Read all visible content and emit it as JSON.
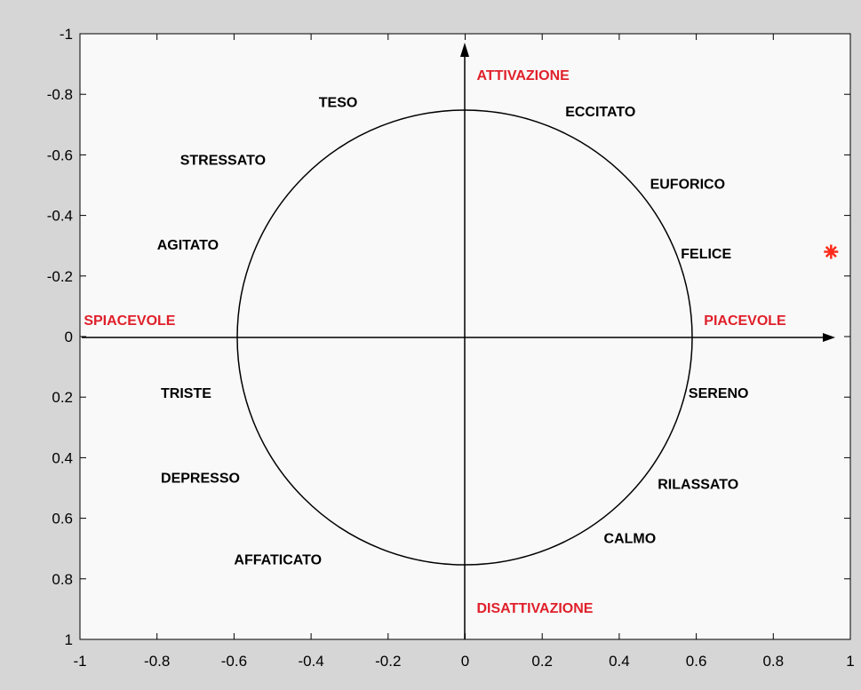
{
  "chart_data": {
    "type": "scatter",
    "x": [
      0.95
    ],
    "values": [
      -0.28
    ],
    "color": "#ff2a1a",
    "marker": "asterisk",
    "xlim": [
      -1,
      1
    ],
    "ylim": [
      -1,
      1
    ],
    "y_reversed": true,
    "xticks": [
      -1,
      -0.8,
      -0.6,
      -0.4,
      -0.2,
      0,
      0.2,
      0.4,
      0.6,
      0.8,
      1
    ],
    "yticks": [
      -1,
      -0.8,
      -0.6,
      -0.4,
      -0.2,
      0,
      0.2,
      0.4,
      0.6,
      0.8,
      1
    ],
    "annotations": [
      {
        "text": "ATTIVAZIONE",
        "x": 0.03,
        "y": -0.86,
        "color": "#e0202a"
      },
      {
        "text": "TESO",
        "x": -0.38,
        "y": -0.77,
        "color": "#000000"
      },
      {
        "text": "ECCITATO",
        "x": 0.26,
        "y": -0.74,
        "color": "#000000"
      },
      {
        "text": "STRESSATO",
        "x": -0.74,
        "y": -0.58,
        "color": "#000000"
      },
      {
        "text": "EUFORICO",
        "x": 0.48,
        "y": -0.5,
        "color": "#000000"
      },
      {
        "text": "AGITATO",
        "x": -0.8,
        "y": -0.3,
        "color": "#000000"
      },
      {
        "text": "FELICE",
        "x": 0.56,
        "y": -0.27,
        "color": "#000000"
      },
      {
        "text": "SPIACEVOLE",
        "x": -0.99,
        "y": -0.05,
        "color": "#e0202a"
      },
      {
        "text": "PIACEVOLE",
        "x": 0.62,
        "y": -0.05,
        "color": "#e0202a"
      },
      {
        "text": "TRISTE",
        "x": -0.79,
        "y": 0.19,
        "color": "#000000"
      },
      {
        "text": "SERENO",
        "x": 0.58,
        "y": 0.19,
        "color": "#000000"
      },
      {
        "text": "DEPRESSO",
        "x": -0.79,
        "y": 0.47,
        "color": "#000000"
      },
      {
        "text": "RILASSATO",
        "x": 0.5,
        "y": 0.49,
        "color": "#000000"
      },
      {
        "text": "CALMO",
        "x": 0.36,
        "y": 0.67,
        "color": "#000000"
      },
      {
        "text": "AFFATICATO",
        "x": -0.6,
        "y": 0.74,
        "color": "#000000"
      },
      {
        "text": "DISATTIVAZIONE",
        "x": 0.03,
        "y": 0.9,
        "color": "#e0202a"
      }
    ]
  }
}
